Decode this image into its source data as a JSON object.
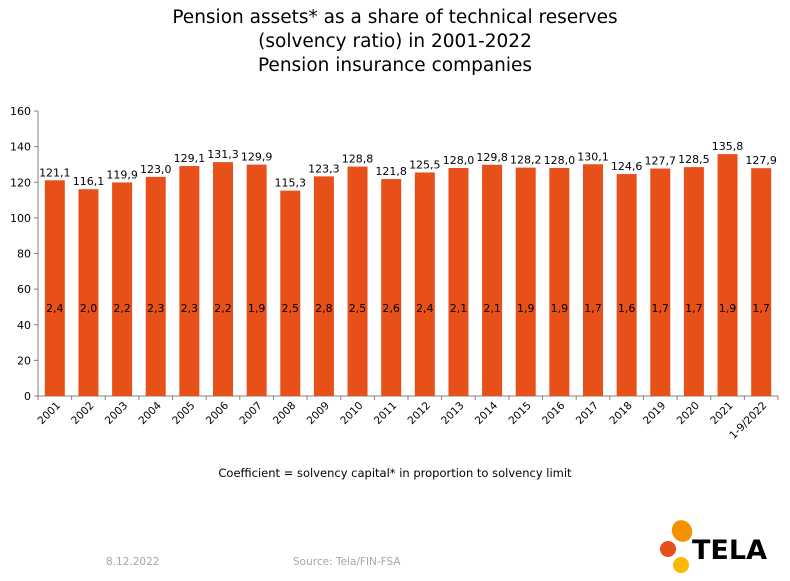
{
  "chart_data": {
    "type": "bar",
    "title": [
      "Pension assets* as a share of technical reserves",
      "(solvency ratio) in 2001-2022",
      "Pension insurance companies"
    ],
    "categories": [
      "2001",
      "2002",
      "2003",
      "2004",
      "2005",
      "2006",
      "2007",
      "2008",
      "2009",
      "2010",
      "2011",
      "2012",
      "2013",
      "2014",
      "2015",
      "2016",
      "2017",
      "2018",
      "2019",
      "2020",
      "2021",
      "1-9/2022"
    ],
    "values": [
      121.1,
      116.1,
      119.9,
      123.0,
      129.1,
      131.3,
      129.9,
      115.3,
      123.3,
      128.8,
      121.8,
      125.5,
      128.0,
      129.8,
      128.2,
      128.0,
      130.1,
      124.6,
      127.7,
      128.5,
      135.8,
      127.9
    ],
    "value_labels": [
      "121,1",
      "116,1",
      "119,9",
      "123,0",
      "129,1",
      "131,3",
      "129,9",
      "115,3",
      "123,3",
      "128,8",
      "121,8",
      "125,5",
      "128,0",
      "129,8",
      "128,2",
      "128,0",
      "130,1",
      "124,6",
      "127,7",
      "128,5",
      "135,8",
      "127,9"
    ],
    "coefficients": [
      "2,4",
      "2,0",
      "2,2",
      "2,3",
      "2,3",
      "2,2",
      "1,9",
      "2,5",
      "2,8",
      "2,5",
      "2,6",
      "2,4",
      "2,1",
      "2,1",
      "1,9",
      "1,9",
      "1,7",
      "1,6",
      "1,7",
      "1,7",
      "1,9",
      "1,7"
    ],
    "ylim": [
      0,
      160
    ],
    "yticks": [
      0,
      20,
      40,
      60,
      80,
      100,
      120,
      140,
      160
    ],
    "bar_color": "#e8501a",
    "grid": false
  },
  "caption": "Coefficient = solvency capital* in proportion to solvency limit",
  "footer": {
    "date": "8.12.2022",
    "source": "Source: Tela/FIN-FSA"
  },
  "logo": {
    "text": "TELA",
    "colors": [
      "#f39200",
      "#e8501a",
      "#fbb900"
    ]
  }
}
